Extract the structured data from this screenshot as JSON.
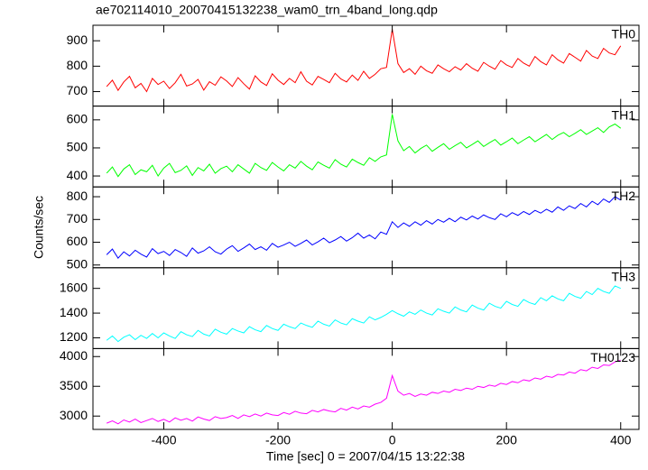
{
  "chart_data": {
    "type": "line",
    "title": "ae702114010_20070415132238_wam0_trn_4band_long.qdp",
    "xlabel": "Time [sec] 0 = 2007/04/15 13:22:38",
    "ylabel": "Counts/sec",
    "xlim": [
      -524,
      432
    ],
    "xticks": [
      -400,
      -200,
      0,
      200,
      400
    ],
    "x": [
      -500,
      -490,
      -480,
      -470,
      -460,
      -450,
      -440,
      -430,
      -420,
      -410,
      -400,
      -390,
      -380,
      -370,
      -360,
      -350,
      -340,
      -330,
      -320,
      -310,
      -300,
      -290,
      -280,
      -270,
      -260,
      -250,
      -240,
      -230,
      -220,
      -210,
      -200,
      -190,
      -180,
      -170,
      -160,
      -150,
      -140,
      -130,
      -120,
      -110,
      -100,
      -90,
      -80,
      -70,
      -60,
      -50,
      -40,
      -30,
      -20,
      -10,
      0,
      10,
      20,
      30,
      40,
      50,
      60,
      70,
      80,
      90,
      100,
      110,
      120,
      130,
      140,
      150,
      160,
      170,
      180,
      190,
      200,
      210,
      220,
      230,
      240,
      250,
      260,
      270,
      280,
      290,
      300,
      310,
      320,
      330,
      340,
      350,
      360,
      370,
      380,
      390,
      400
    ],
    "series": [
      {
        "name": "TH0",
        "color": "#ff0000",
        "ylim": [
          643,
          961
        ],
        "yticks": [
          700,
          800,
          900
        ],
        "values": [
          720,
          745,
          705,
          738,
          760,
          715,
          732,
          700,
          752,
          728,
          741,
          712,
          735,
          768,
          722,
          730,
          748,
          706,
          739,
          725,
          758,
          742,
          720,
          755,
          731,
          710,
          762,
          738,
          724,
          770,
          745,
          728,
          752,
          735,
          778,
          741,
          726,
          760,
          748,
          735,
          772,
          750,
          738,
          765,
          744,
          780,
          752,
          768,
          790,
          795,
          945,
          810,
          775,
          790,
          768,
          800,
          782,
          772,
          805,
          790,
          778,
          798,
          785,
          810,
          792,
          780,
          815,
          800,
          788,
          822,
          805,
          795,
          830,
          812,
          800,
          838,
          818,
          805,
          845,
          825,
          812,
          850,
          835,
          820,
          862,
          840,
          830,
          870,
          852,
          845,
          880
        ]
      },
      {
        "name": "TH1",
        "color": "#00ff00",
        "ylim": [
          361,
          649
        ],
        "yticks": [
          400,
          500,
          600
        ],
        "values": [
          410,
          432,
          398,
          425,
          440,
          405,
          422,
          415,
          438,
          400,
          428,
          445,
          412,
          420,
          436,
          402,
          430,
          418,
          442,
          410,
          426,
          435,
          415,
          440,
          425,
          410,
          445,
          430,
          420,
          448,
          432,
          418,
          440,
          428,
          452,
          435,
          422,
          450,
          438,
          428,
          458,
          442,
          432,
          460,
          448,
          438,
          465,
          452,
          468,
          475,
          620,
          525,
          490,
          505,
          482,
          498,
          510,
          488,
          502,
          515,
          495,
          508,
          520,
          500,
          512,
          525,
          505,
          518,
          530,
          510,
          522,
          535,
          515,
          528,
          540,
          522,
          535,
          548,
          530,
          545,
          555,
          540,
          552,
          565,
          548,
          560,
          572,
          555,
          575,
          585,
          570
        ]
      },
      {
        "name": "TH2",
        "color": "#0000ff",
        "ylim": [
          488,
          843
        ],
        "yticks": [
          500,
          600,
          700,
          800
        ],
        "values": [
          545,
          570,
          530,
          558,
          540,
          565,
          548,
          535,
          572,
          550,
          560,
          542,
          568,
          555,
          538,
          575,
          552,
          562,
          580,
          558,
          548,
          570,
          585,
          560,
          575,
          592,
          568,
          580,
          565,
          595,
          578,
          588,
          600,
          582,
          595,
          610,
          588,
          602,
          618,
          598,
          610,
          625,
          605,
          620,
          640,
          618,
          632,
          615,
          645,
          635,
          690,
          665,
          685,
          670,
          690,
          675,
          695,
          680,
          700,
          688,
          705,
          690,
          710,
          698,
          715,
          702,
          720,
          708,
          700,
          725,
          712,
          730,
          718,
          735,
          722,
          740,
          728,
          745,
          732,
          755,
          740,
          760,
          748,
          770,
          755,
          780,
          765,
          790,
          775,
          800,
          785
        ]
      },
      {
        "name": "TH3",
        "color": "#00ffff",
        "ylim": [
          1113,
          1767
        ],
        "yticks": [
          1200,
          1400,
          1600
        ],
        "values": [
          1180,
          1215,
          1170,
          1205,
          1225,
          1185,
          1220,
          1195,
          1235,
          1200,
          1240,
          1215,
          1195,
          1250,
          1225,
          1210,
          1260,
          1230,
          1215,
          1270,
          1245,
          1230,
          1275,
          1255,
          1240,
          1290,
          1265,
          1250,
          1300,
          1275,
          1260,
          1310,
          1290,
          1275,
          1320,
          1300,
          1285,
          1335,
          1310,
          1295,
          1345,
          1320,
          1305,
          1355,
          1335,
          1320,
          1370,
          1345,
          1365,
          1390,
          1420,
          1395,
          1375,
          1410,
          1390,
          1425,
          1400,
          1385,
          1435,
          1415,
          1400,
          1450,
          1425,
          1410,
          1465,
          1440,
          1425,
          1480,
          1455,
          1440,
          1495,
          1470,
          1455,
          1510,
          1485,
          1470,
          1525,
          1500,
          1540,
          1515,
          1500,
          1560,
          1535,
          1520,
          1575,
          1550,
          1600,
          1575,
          1560,
          1620,
          1600
        ]
      },
      {
        "name": "TH0123",
        "color": "#ff00ff",
        "ylim": [
          2776,
          4134
        ],
        "yticks": [
          3000,
          3500,
          4000
        ],
        "values": [
          2880,
          2920,
          2870,
          2935,
          2900,
          2950,
          2890,
          2925,
          2960,
          2910,
          2945,
          2900,
          2970,
          2930,
          2960,
          2915,
          2985,
          2950,
          2925,
          2990,
          2960,
          2975,
          3010,
          2960,
          3020,
          2990,
          3035,
          3000,
          3050,
          3020,
          3010,
          3060,
          3030,
          3080,
          3050,
          3040,
          3095,
          3070,
          3110,
          3085,
          3070,
          3130,
          3100,
          3150,
          3120,
          3170,
          3150,
          3200,
          3230,
          3300,
          3680,
          3420,
          3350,
          3380,
          3330,
          3370,
          3350,
          3400,
          3380,
          3420,
          3400,
          3450,
          3430,
          3470,
          3450,
          3500,
          3480,
          3520,
          3500,
          3550,
          3530,
          3580,
          3560,
          3610,
          3590,
          3640,
          3620,
          3670,
          3650,
          3700,
          3690,
          3740,
          3720,
          3780,
          3760,
          3820,
          3800,
          3860,
          3850,
          3910,
          3940
        ]
      }
    ]
  }
}
